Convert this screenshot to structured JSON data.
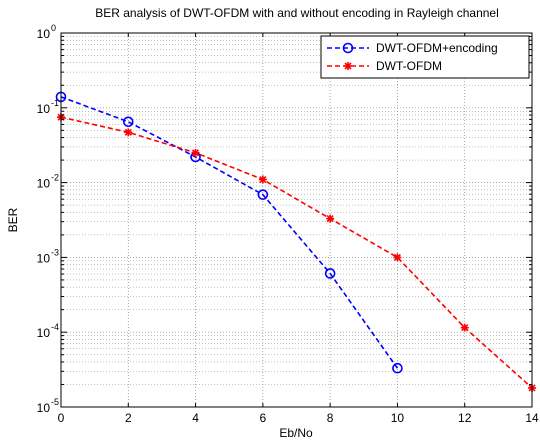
{
  "chart_data": {
    "type": "line",
    "title": "BER analysis of DWT-OFDM with and without encoding in Rayleigh channel",
    "xlabel": "Eb/No",
    "ylabel": "BER",
    "xlim": [
      0,
      14
    ],
    "ylim": [
      1e-05,
      1
    ],
    "yscale": "log",
    "grid": true,
    "legend_position": "top-right",
    "x_ticks": [
      0,
      2,
      4,
      6,
      8,
      10,
      12,
      14
    ],
    "y_ticks": [
      {
        "value": 1e-05,
        "base": "10",
        "exp": "-5"
      },
      {
        "value": 0.0001,
        "base": "10",
        "exp": "-4"
      },
      {
        "value": 0.001,
        "base": "10",
        "exp": "-3"
      },
      {
        "value": 0.01,
        "base": "10",
        "exp": "-2"
      },
      {
        "value": 0.1,
        "base": "10",
        "exp": "-1"
      },
      {
        "value": 1,
        "base": "10",
        "exp": "0"
      }
    ],
    "series": [
      {
        "name": "DWT-OFDM+encoding",
        "color": "#0000ff",
        "marker": "circle",
        "x": [
          0,
          2,
          4,
          6,
          8,
          10
        ],
        "y": [
          0.14,
          0.065,
          0.022,
          0.0069,
          0.00061,
          3.3e-05
        ]
      },
      {
        "name": "DWT-OFDM",
        "color": "#ff0000",
        "marker": "star",
        "x": [
          0,
          2,
          4,
          6,
          8,
          10,
          12,
          14
        ],
        "y": [
          0.075,
          0.047,
          0.025,
          0.011,
          0.0033,
          0.001,
          0.000115,
          1.8e-05
        ]
      }
    ]
  }
}
